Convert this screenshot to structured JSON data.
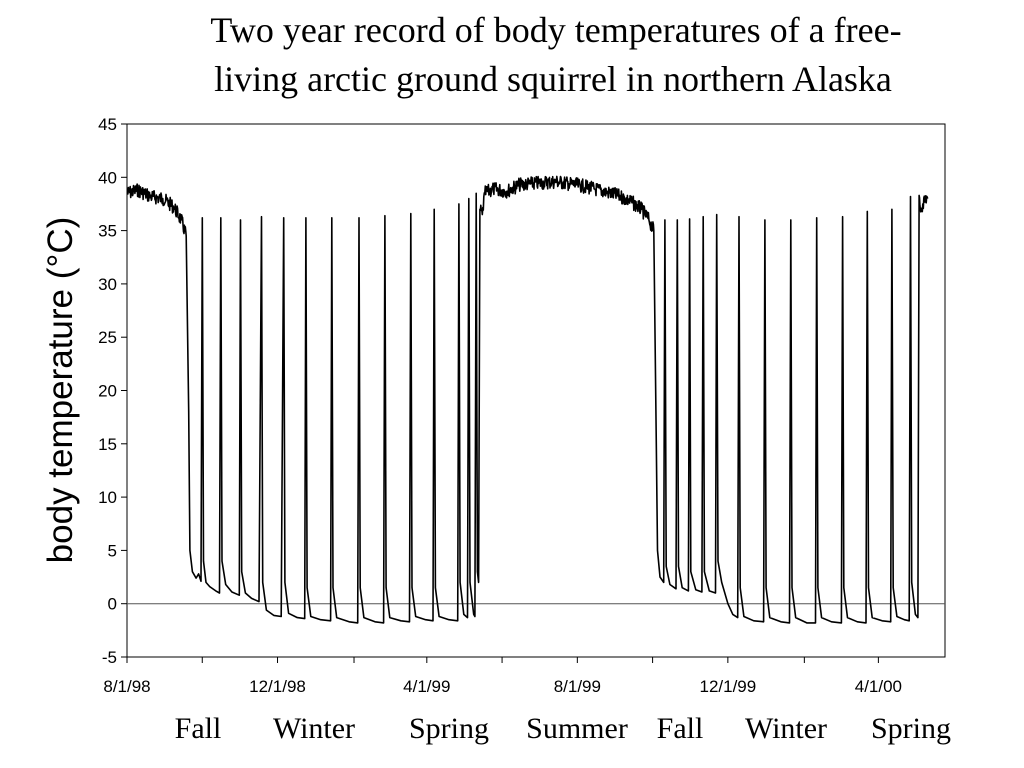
{
  "chart_data": {
    "type": "line",
    "title_lines": [
      "Two year record of body temperatures of a free-",
      "living arctic ground squirrel in northern Alaska"
    ],
    "xlabel": "",
    "ylabel": "body temperature (°C)",
    "ylim": [
      -5,
      45
    ],
    "yticks": [
      -5,
      0,
      5,
      10,
      15,
      20,
      25,
      30,
      35,
      40,
      45
    ],
    "xlim": [
      "1998-08-01",
      "2000-05-25"
    ],
    "xticks": [
      "1998-08-01",
      "1998-10-01",
      "1998-12-01",
      "1999-02-01",
      "1999-04-01",
      "1999-06-01",
      "1999-08-01",
      "1999-10-01",
      "1999-12-01",
      "2000-02-01",
      "2000-04-01"
    ],
    "xtick_labels": [
      {
        "date": "1998-08-01",
        "label": "8/1/98"
      },
      {
        "date": "1998-12-01",
        "label": "12/1/98"
      },
      {
        "date": "1999-04-01",
        "label": "4/1/99"
      },
      {
        "date": "1999-08-01",
        "label": "8/1/99"
      },
      {
        "date": "1999-12-01",
        "label": "12/1/99"
      },
      {
        "date": "2000-04-01",
        "label": "4/1/00"
      }
    ],
    "season_labels": [
      "Fall",
      "Winter",
      "Spring",
      "Summer",
      "Fall",
      "Winter",
      "Spring"
    ],
    "reference_line_y": 0,
    "grid": false,
    "legend": "none",
    "series": [
      {
        "color": "#000000",
        "points": [
          [
            "1998-08-01",
            38.5
          ],
          [
            "1998-08-10",
            38.8
          ],
          [
            "1998-08-20",
            38.2
          ],
          [
            "1998-08-30",
            38.0
          ],
          [
            "1998-09-08",
            37.2
          ],
          [
            "1998-09-14",
            36.0
          ],
          [
            "1998-09-18",
            34.5
          ],
          [
            "1998-09-20",
            18.0
          ],
          [
            "1998-09-21",
            5.0
          ],
          [
            "1998-09-23",
            3.0
          ],
          [
            "1998-09-26",
            2.4
          ],
          [
            "1998-09-28",
            2.8
          ],
          [
            "1998-09-30",
            2.1
          ],
          [
            "1998-10-01",
            36.2
          ],
          [
            "1998-10-02",
            4.0
          ],
          [
            "1998-10-04",
            2.0
          ],
          [
            "1998-10-07",
            1.6
          ],
          [
            "1998-10-12",
            1.2
          ],
          [
            "1998-10-15",
            1.0
          ],
          [
            "1998-10-16",
            36.2
          ],
          [
            "1998-10-17",
            4.0
          ],
          [
            "1998-10-20",
            1.8
          ],
          [
            "1998-10-25",
            1.1
          ],
          [
            "1998-10-31",
            0.8
          ],
          [
            "1998-11-01",
            36.0
          ],
          [
            "1998-11-02",
            3.0
          ],
          [
            "1998-11-05",
            1.0
          ],
          [
            "1998-11-10",
            0.5
          ],
          [
            "1998-11-16",
            0.2
          ],
          [
            "1998-11-18",
            36.3
          ],
          [
            "1998-11-19",
            2.0
          ],
          [
            "1998-11-22",
            -0.6
          ],
          [
            "1998-11-28",
            -1.1
          ],
          [
            "1998-12-04",
            -1.2
          ],
          [
            "1998-12-06",
            36.2
          ],
          [
            "1998-12-07",
            2.0
          ],
          [
            "1998-12-10",
            -0.9
          ],
          [
            "1998-12-17",
            -1.3
          ],
          [
            "1998-12-23",
            -1.4
          ],
          [
            "1998-12-24",
            36.2
          ],
          [
            "1998-12-25",
            1.5
          ],
          [
            "1998-12-28",
            -1.2
          ],
          [
            "1999-01-05",
            -1.5
          ],
          [
            "1999-01-13",
            -1.6
          ],
          [
            "1999-01-14",
            36.2
          ],
          [
            "1999-01-15",
            1.5
          ],
          [
            "1999-01-18",
            -1.3
          ],
          [
            "1999-01-28",
            -1.7
          ],
          [
            "1999-02-04",
            -1.8
          ],
          [
            "1999-02-05",
            36.2
          ],
          [
            "1999-02-06",
            1.5
          ],
          [
            "1999-02-09",
            -1.3
          ],
          [
            "1999-02-18",
            -1.7
          ],
          [
            "1999-02-25",
            -1.8
          ],
          [
            "1999-02-26",
            36.4
          ],
          [
            "1999-02-27",
            1.5
          ],
          [
            "1999-03-02",
            -1.3
          ],
          [
            "1999-03-11",
            -1.6
          ],
          [
            "1999-03-18",
            -1.7
          ],
          [
            "1999-03-19",
            36.6
          ],
          [
            "1999-03-20",
            1.5
          ],
          [
            "1999-03-23",
            -1.2
          ],
          [
            "1999-03-31",
            -1.5
          ],
          [
            "1999-04-06",
            -1.6
          ],
          [
            "1999-04-07",
            37.0
          ],
          [
            "1999-04-08",
            1.5
          ],
          [
            "1999-04-11",
            -1.2
          ],
          [
            "1999-04-19",
            -1.5
          ],
          [
            "1999-04-26",
            -1.6
          ],
          [
            "1999-04-27",
            37.5
          ],
          [
            "1999-04-28",
            2.0
          ],
          [
            "1999-05-01",
            -1.0
          ],
          [
            "1999-05-04",
            -1.3
          ],
          [
            "1999-05-05",
            38.0
          ],
          [
            "1999-05-06",
            2.0
          ],
          [
            "1999-05-09",
            -1.0
          ],
          [
            "1999-05-10",
            -1.2
          ],
          [
            "1999-05-11",
            38.5
          ],
          [
            "1999-05-12",
            3.0
          ],
          [
            "1999-05-13",
            2.0
          ],
          [
            "1999-05-14",
            37.0
          ],
          [
            "1999-05-16",
            36.5
          ],
          [
            "1999-05-18",
            38.5
          ],
          [
            "1999-05-25",
            38.9
          ],
          [
            "1999-06-05",
            38.7
          ],
          [
            "1999-06-15",
            39.3
          ],
          [
            "1999-06-25",
            39.4
          ],
          [
            "1999-07-05",
            39.5
          ],
          [
            "1999-07-15",
            39.6
          ],
          [
            "1999-07-25",
            39.4
          ],
          [
            "1999-08-05",
            39.2
          ],
          [
            "1999-08-15",
            38.9
          ],
          [
            "1999-08-25",
            38.6
          ],
          [
            "1999-09-05",
            38.2
          ],
          [
            "1999-09-15",
            37.6
          ],
          [
            "1999-09-22",
            37.0
          ],
          [
            "1999-09-28",
            36.0
          ],
          [
            "1999-10-02",
            35.0
          ],
          [
            "1999-10-04",
            15.0
          ],
          [
            "1999-10-05",
            5.0
          ],
          [
            "1999-10-07",
            2.5
          ],
          [
            "1999-10-10",
            2.0
          ],
          [
            "1999-10-11",
            36.0
          ],
          [
            "1999-10-12",
            3.5
          ],
          [
            "1999-10-15",
            1.8
          ],
          [
            "1999-10-20",
            1.4
          ],
          [
            "1999-10-21",
            36.0
          ],
          [
            "1999-10-22",
            3.5
          ],
          [
            "1999-10-25",
            1.5
          ],
          [
            "1999-10-30",
            1.2
          ],
          [
            "1999-10-31",
            36.1
          ],
          [
            "1999-11-01",
            3.0
          ],
          [
            "1999-11-05",
            1.3
          ],
          [
            "1999-11-10",
            1.1
          ],
          [
            "1999-11-11",
            36.3
          ],
          [
            "1999-11-12",
            3.0
          ],
          [
            "1999-11-16",
            1.2
          ],
          [
            "1999-11-21",
            1.0
          ],
          [
            "1999-11-22",
            36.5
          ],
          [
            "1999-11-23",
            4.0
          ],
          [
            "1999-11-26",
            2.0
          ],
          [
            "1999-12-01",
            0.0
          ],
          [
            "1999-12-05",
            -1.0
          ],
          [
            "1999-12-09",
            -1.3
          ],
          [
            "1999-12-10",
            36.3
          ],
          [
            "1999-12-11",
            1.5
          ],
          [
            "1999-12-14",
            -1.2
          ],
          [
            "1999-12-22",
            -1.6
          ],
          [
            "1999-12-30",
            -1.7
          ],
          [
            "1999-12-31",
            36.0
          ],
          [
            "2000-01-01",
            1.5
          ],
          [
            "2000-01-04",
            -1.3
          ],
          [
            "2000-01-13",
            -1.7
          ],
          [
            "2000-01-20",
            -1.8
          ],
          [
            "2000-01-21",
            36.0
          ],
          [
            "2000-01-22",
            1.5
          ],
          [
            "2000-01-25",
            -1.3
          ],
          [
            "2000-02-03",
            -1.8
          ],
          [
            "2000-02-10",
            -1.8
          ],
          [
            "2000-02-11",
            36.2
          ],
          [
            "2000-02-12",
            1.5
          ],
          [
            "2000-02-15",
            -1.3
          ],
          [
            "2000-02-23",
            -1.7
          ],
          [
            "2000-03-02",
            -1.8
          ],
          [
            "2000-03-03",
            36.3
          ],
          [
            "2000-03-04",
            1.5
          ],
          [
            "2000-03-07",
            -1.3
          ],
          [
            "2000-03-15",
            -1.7
          ],
          [
            "2000-03-22",
            -1.8
          ],
          [
            "2000-03-23",
            36.8
          ],
          [
            "2000-03-24",
            1.5
          ],
          [
            "2000-03-27",
            -1.3
          ],
          [
            "2000-04-04",
            -1.6
          ],
          [
            "2000-04-11",
            -1.7
          ],
          [
            "2000-04-12",
            37.0
          ],
          [
            "2000-04-13",
            1.5
          ],
          [
            "2000-04-16",
            -1.2
          ],
          [
            "2000-04-22",
            -1.5
          ],
          [
            "2000-04-26",
            -1.6
          ],
          [
            "2000-04-27",
            38.2
          ],
          [
            "2000-04-28",
            2.0
          ],
          [
            "2000-05-01",
            -1.0
          ],
          [
            "2000-05-03",
            -1.3
          ],
          [
            "2000-05-04",
            38.3
          ],
          [
            "2000-05-05",
            37.0
          ],
          [
            "2000-05-07",
            37.5
          ],
          [
            "2000-05-09",
            38.0
          ],
          [
            "2000-05-11",
            38.0
          ]
        ]
      }
    ]
  }
}
